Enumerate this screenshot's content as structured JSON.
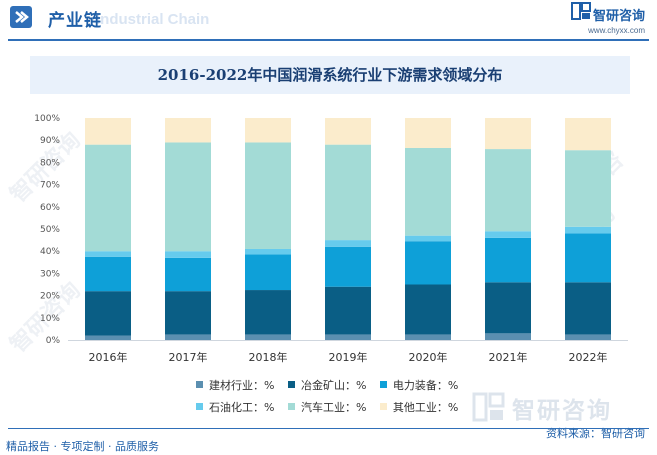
{
  "header": {
    "section_title": "产业链",
    "section_subtitle": "Industrial Chain",
    "brand_name": "智研咨询",
    "brand_url": "www.chyxx.com"
  },
  "watermark": {
    "text": "智研咨询"
  },
  "footer": {
    "left_text": "精品报告 · 专项定制 · 品质服务",
    "source_text": "资料来源：智研咨询"
  },
  "colors": {
    "header_blue": "#1f5fa8",
    "series": [
      "#5b8fb0",
      "#0a5e85",
      "#0ea0d8",
      "#66cbed",
      "#a3dbd6",
      "#fbeccc"
    ]
  },
  "chart_data": {
    "type": "bar",
    "stacked": true,
    "title": "2016-2022年中国润滑系统行业下游需求领域分布",
    "categories": [
      "2016年",
      "2017年",
      "2018年",
      "2019年",
      "2020年",
      "2021年",
      "2022年"
    ],
    "series": [
      {
        "name": "建材行业：%",
        "values": [
          2,
          2.5,
          2.5,
          2.5,
          2.5,
          3,
          2.5
        ]
      },
      {
        "name": "冶金矿山：%",
        "values": [
          20,
          19.5,
          20,
          21.5,
          22.5,
          23,
          23.5
        ]
      },
      {
        "name": "电力装备：%",
        "values": [
          15.5,
          15,
          16,
          18,
          19.5,
          20,
          22
        ]
      },
      {
        "name": "石油化工：%",
        "values": [
          2.5,
          3,
          2.5,
          3,
          2.5,
          3,
          3
        ]
      },
      {
        "name": "汽车工业：%",
        "values": [
          48,
          49,
          48,
          43,
          39.5,
          37,
          34.5
        ]
      },
      {
        "name": "其他工业：%",
        "values": [
          12,
          11,
          11,
          12,
          13.5,
          14,
          14.5
        ]
      }
    ],
    "yticks": [
      "0%",
      "10%",
      "20%",
      "30%",
      "40%",
      "50%",
      "60%",
      "70%",
      "80%",
      "90%",
      "100%"
    ],
    "ylim": [
      0,
      100
    ],
    "grid": false,
    "legend_position": "bottom"
  }
}
